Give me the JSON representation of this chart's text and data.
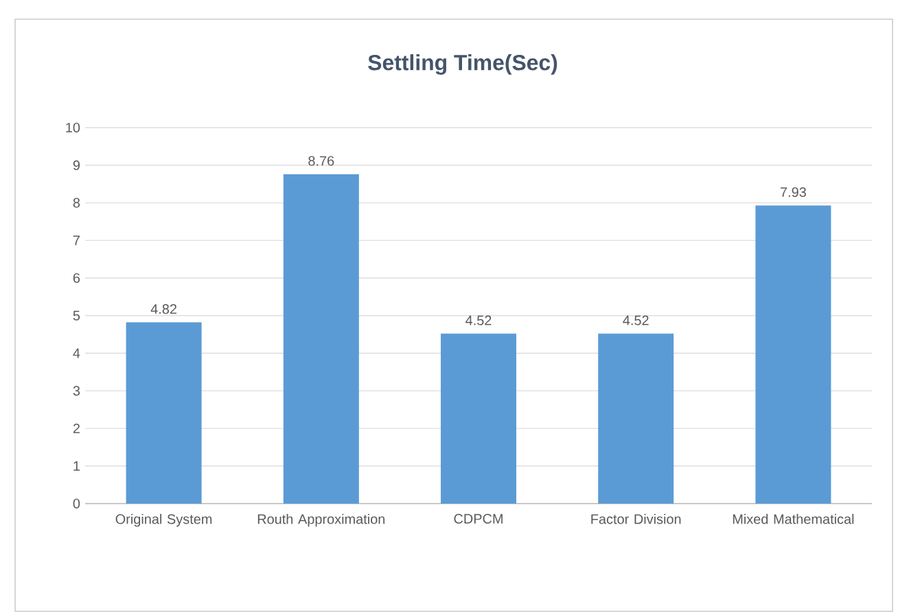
{
  "chart_data": {
    "type": "bar",
    "title": "Settling Time(Sec)",
    "categories": [
      "Original System",
      "Routh Approximation",
      "CDPCM",
      "Factor Division",
      "Mixed Mathematical"
    ],
    "values": [
      4.82,
      8.76,
      4.52,
      4.52,
      7.93
    ],
    "color": "#5b9bd5",
    "ylim": [
      0,
      10
    ],
    "yticks": [
      0,
      1,
      2,
      3,
      4,
      5,
      6,
      7,
      8,
      9,
      10
    ],
    "grid": "y",
    "data_labels": true
  }
}
